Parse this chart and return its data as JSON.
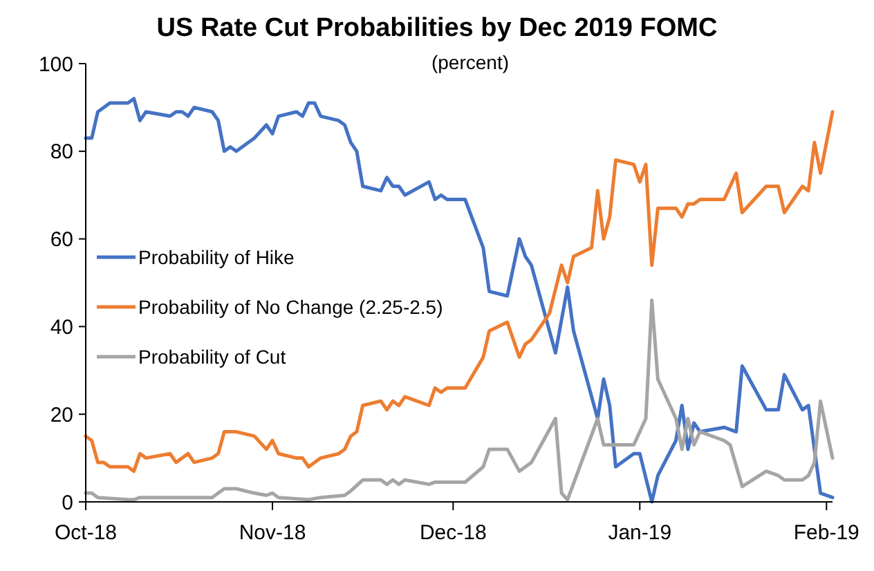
{
  "chart_data": {
    "type": "line",
    "title": "US Rate Cut Probabilities by Dec 2019 FOMC",
    "subtitle": "(percent)",
    "xlim": [
      "2018-10-01",
      "2019-02-02"
    ],
    "xticks": [
      {
        "value": "2018-10-01",
        "label": "Oct-18"
      },
      {
        "value": "2018-11-01",
        "label": "Nov-18"
      },
      {
        "value": "2018-12-01",
        "label": "Dec-18"
      },
      {
        "value": "2019-01-01",
        "label": "Jan-19"
      },
      {
        "value": "2019-02-01",
        "label": "Feb-19"
      }
    ],
    "ylim": [
      0,
      100
    ],
    "yticks": [
      0,
      20,
      40,
      60,
      80,
      100
    ],
    "grid": false,
    "legend": "left",
    "marker": "none",
    "line_style": "solid",
    "series": [
      {
        "name": "Probability of Hike",
        "color": "#4472c4",
        "x": [
          "2018-10-01",
          "2018-10-02",
          "2018-10-03",
          "2018-10-04",
          "2018-10-05",
          "2018-10-08",
          "2018-10-09",
          "2018-10-10",
          "2018-10-11",
          "2018-10-15",
          "2018-10-16",
          "2018-10-17",
          "2018-10-18",
          "2018-10-19",
          "2018-10-22",
          "2018-10-23",
          "2018-10-24",
          "2018-10-25",
          "2018-10-26",
          "2018-10-29",
          "2018-10-31",
          "2018-11-01",
          "2018-11-02",
          "2018-11-05",
          "2018-11-06",
          "2018-11-07",
          "2018-11-08",
          "2018-11-09",
          "2018-11-12",
          "2018-11-13",
          "2018-11-14",
          "2018-11-15",
          "2018-11-16",
          "2018-11-19",
          "2018-11-20",
          "2018-11-21",
          "2018-11-22",
          "2018-11-23",
          "2018-11-27",
          "2018-11-28",
          "2018-11-29",
          "2018-11-30",
          "2018-12-03",
          "2018-12-06",
          "2018-12-07",
          "2018-12-10",
          "2018-12-12",
          "2018-12-13",
          "2018-12-14",
          "2018-12-18",
          "2018-12-20",
          "2018-12-21",
          "2018-12-25",
          "2018-12-26",
          "2018-12-27",
          "2018-12-28",
          "2018-12-31",
          "2019-01-01",
          "2019-01-03",
          "2019-01-04",
          "2019-01-07",
          "2019-01-08",
          "2019-01-09",
          "2019-01-10",
          "2019-01-11",
          "2019-01-15",
          "2019-01-17",
          "2019-01-18",
          "2019-01-22",
          "2019-01-24",
          "2019-01-25",
          "2019-01-28",
          "2019-01-29",
          "2019-01-31",
          "2019-02-02"
        ],
        "values": [
          83,
          83,
          89,
          90,
          91,
          91,
          92,
          87,
          89,
          88,
          89,
          89,
          88,
          90,
          89,
          87,
          80,
          81,
          80,
          83,
          86,
          84,
          88,
          89,
          88,
          91,
          91,
          88,
          87,
          86,
          82,
          80,
          72,
          71,
          74,
          72,
          72,
          70,
          73,
          69,
          70,
          69,
          69,
          58,
          48,
          47,
          60,
          56,
          54,
          34,
          49,
          39,
          19,
          28,
          22,
          8,
          11,
          11,
          0,
          6,
          14,
          22,
          12,
          18,
          16,
          17,
          16,
          31,
          21,
          21,
          29,
          21,
          22,
          2,
          1
        ]
      },
      {
        "name": "Probability of No Change (2.25-2.5)",
        "color": "#ed7d31",
        "x": [
          "2018-10-01",
          "2018-10-02",
          "2018-10-03",
          "2018-10-04",
          "2018-10-05",
          "2018-10-08",
          "2018-10-09",
          "2018-10-10",
          "2018-10-11",
          "2018-10-15",
          "2018-10-16",
          "2018-10-18",
          "2018-10-19",
          "2018-10-22",
          "2018-10-23",
          "2018-10-24",
          "2018-10-25",
          "2018-10-26",
          "2018-10-29",
          "2018-10-31",
          "2018-11-01",
          "2018-11-02",
          "2018-11-05",
          "2018-11-06",
          "2018-11-07",
          "2018-11-08",
          "2018-11-09",
          "2018-11-12",
          "2018-11-13",
          "2018-11-14",
          "2018-11-15",
          "2018-11-16",
          "2018-11-19",
          "2018-11-20",
          "2018-11-21",
          "2018-11-22",
          "2018-11-23",
          "2018-11-27",
          "2018-11-28",
          "2018-11-29",
          "2018-11-30",
          "2018-12-03",
          "2018-12-06",
          "2018-12-07",
          "2018-12-10",
          "2018-12-12",
          "2018-12-13",
          "2018-12-14",
          "2018-12-17",
          "2018-12-19",
          "2018-12-20",
          "2018-12-21",
          "2018-12-24",
          "2018-12-25",
          "2018-12-26",
          "2018-12-27",
          "2018-12-28",
          "2018-12-31",
          "2019-01-01",
          "2019-01-02",
          "2019-01-03",
          "2019-01-04",
          "2019-01-07",
          "2019-01-08",
          "2019-01-09",
          "2019-01-10",
          "2019-01-11",
          "2019-01-15",
          "2019-01-17",
          "2019-01-18",
          "2019-01-22",
          "2019-01-24",
          "2019-01-25",
          "2019-01-28",
          "2019-01-29",
          "2019-01-30",
          "2019-01-31",
          "2019-02-02"
        ],
        "values": [
          15,
          14,
          9,
          9,
          8,
          8,
          7,
          11,
          10,
          11,
          9,
          11,
          9,
          10,
          11,
          16,
          16,
          16,
          15,
          12,
          14,
          11,
          10,
          10,
          8,
          9,
          10,
          11,
          12,
          15,
          16,
          22,
          23,
          21,
          23,
          22,
          24,
          22,
          26,
          25,
          26,
          26,
          33,
          39,
          41,
          33,
          36,
          37,
          43,
          54,
          50,
          56,
          58,
          71,
          60,
          65,
          78,
          77,
          73,
          77,
          54,
          67,
          67,
          65,
          68,
          68,
          69,
          69,
          75,
          66,
          72,
          72,
          66,
          72,
          71,
          82,
          75,
          89
        ]
      },
      {
        "name": "Probability of Cut",
        "color": "#a5a5a5",
        "x": [
          "2018-10-01",
          "2018-10-02",
          "2018-10-03",
          "2018-10-08",
          "2018-10-09",
          "2018-10-10",
          "2018-10-22",
          "2018-10-23",
          "2018-10-24",
          "2018-10-26",
          "2018-10-29",
          "2018-10-31",
          "2018-11-01",
          "2018-11-02",
          "2018-11-07",
          "2018-11-09",
          "2018-11-13",
          "2018-11-14",
          "2018-11-16",
          "2018-11-19",
          "2018-11-20",
          "2018-11-21",
          "2018-11-22",
          "2018-11-23",
          "2018-11-27",
          "2018-11-28",
          "2018-12-03",
          "2018-12-06",
          "2018-12-07",
          "2018-12-10",
          "2018-12-12",
          "2018-12-14",
          "2018-12-18",
          "2018-12-19",
          "2018-12-20",
          "2018-12-25",
          "2018-12-26",
          "2018-12-28",
          "2018-12-31",
          "2019-01-02",
          "2019-01-03",
          "2019-01-04",
          "2019-01-07",
          "2019-01-08",
          "2019-01-09",
          "2019-01-10",
          "2019-01-11",
          "2019-01-15",
          "2019-01-16",
          "2019-01-18",
          "2019-01-22",
          "2019-01-24",
          "2019-01-25",
          "2019-01-28",
          "2019-01-29",
          "2019-01-30",
          "2019-01-31",
          "2019-02-02"
        ],
        "values": [
          2,
          2,
          1,
          0.5,
          0.5,
          1,
          1,
          2,
          3,
          3,
          2,
          1.5,
          2,
          1,
          0.5,
          1,
          1.5,
          2.5,
          5,
          5,
          4,
          5,
          4,
          5,
          4,
          4.5,
          4.5,
          8,
          12,
          12,
          7,
          9,
          19,
          2,
          0.5,
          19,
          13,
          13,
          13,
          19,
          46,
          28,
          19,
          12,
          19,
          13,
          16,
          14,
          13,
          3.5,
          7,
          6,
          5,
          5,
          6,
          9,
          23,
          10
        ]
      }
    ]
  }
}
